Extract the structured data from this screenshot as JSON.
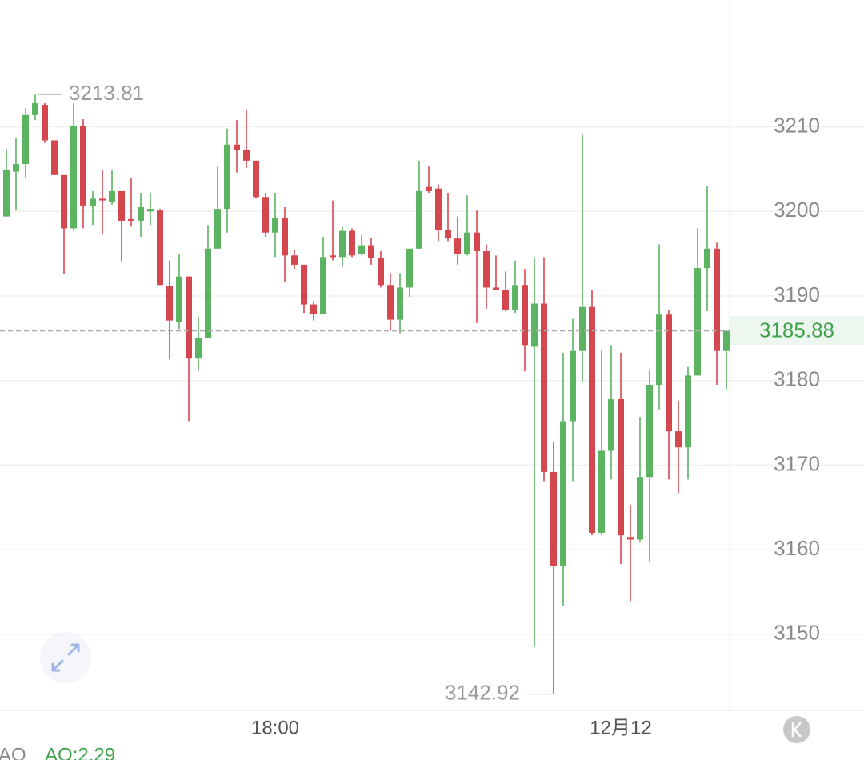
{
  "chart_data": {
    "type": "candlestick",
    "categories": [
      null,
      null,
      null,
      null,
      null,
      null,
      null,
      null,
      null,
      null,
      null,
      null,
      null,
      null,
      null,
      null,
      null,
      null,
      null,
      null,
      null,
      null,
      null,
      null,
      null,
      null,
      null,
      null,
      "18:00",
      null,
      null,
      null,
      null,
      null,
      null,
      null,
      null,
      null,
      null,
      null,
      null,
      null,
      null,
      null,
      null,
      null,
      null,
      null,
      null,
      null,
      null,
      null,
      null,
      null,
      null,
      null,
      null,
      null,
      null,
      null,
      null,
      null,
      null,
      null,
      "12月12",
      null,
      null,
      null,
      null,
      null,
      null,
      null,
      null,
      null,
      null,
      null
    ],
    "open": [
      3199.4,
      3204.7,
      3205.6,
      3211.4,
      3212.6,
      3208.4,
      3204.3,
      3198.0,
      3210.1,
      3200.7,
      3201.5,
      3201.1,
      3202.4,
      3199.1,
      3198.9,
      3200.0,
      3200.1,
      3191.2,
      3186.9,
      3192.3,
      3182.6,
      3185.0,
      3195.6,
      3200.3,
      3207.9,
      3207.3,
      3206.0,
      3201.7,
      3197.5,
      3199.2,
      3194.8,
      3193.7,
      3189.0,
      3187.9,
      3194.8,
      3194.6,
      3197.7,
      3195.0,
      3196.0,
      3194.5,
      3191.3,
      3187.2,
      3191.0,
      3195.6,
      3202.9,
      3202.7,
      3197.8,
      3196.8,
      3195.0,
      3197.5,
      3195.3,
      3191.0,
      3190.7,
      3188.4,
      3191.3,
      3184.0,
      3189.1,
      3169.2,
      3158.1,
      3175.2,
      3183.5,
      3188.7,
      3162.0,
      3171.7,
      3177.8,
      3161.5,
      3161.2,
      3168.6,
      3179.5,
      3187.8,
      3174.0,
      3172.1,
      3180.6,
      3193.3,
      3195.6,
      3183.5
    ],
    "high": [
      3207.4,
      3208.7,
      3212.2,
      3213.81,
      3212.8,
      3208.4,
      3204.3,
      3212.8,
      3210.9,
      3202.4,
      3204.9,
      3204.9,
      3202.4,
      3203.9,
      3202.2,
      3202.2,
      3200.3,
      3194.2,
      3195.0,
      3192.3,
      3187.5,
      3198.4,
      3205.3,
      3209.8,
      3210.8,
      3212.0,
      3206.0,
      3202.2,
      3202.2,
      3200.5,
      3195.4,
      3193.7,
      3189.4,
      3197.0,
      3201.3,
      3198.2,
      3198.0,
      3197.2,
      3196.9,
      3195.3,
      3192.7,
      3192.7,
      3195.6,
      3206.0,
      3205.3,
      3203.2,
      3202.2,
      3199.4,
      3201.9,
      3200.1,
      3196.1,
      3194.8,
      3192.9,
      3194.2,
      3193.2,
      3194.5,
      3194.6,
      3172.8,
      3183.3,
      3187.3,
      3209.1,
      3190.7,
      3183.6,
      3184.2,
      3183.3,
      3165.3,
      3175.7,
      3181.2,
      3196.1,
      3188.3,
      3177.6,
      3181.6,
      3198.0,
      3203.0,
      3196.3,
      3185.88
    ],
    "low": [
      3199.4,
      3200.1,
      3203.9,
      3210.8,
      3208.1,
      3204.3,
      3192.6,
      3197.7,
      3198.0,
      3198.4,
      3197.3,
      3200.8,
      3194.1,
      3198.2,
      3197.0,
      3198.4,
      3191.3,
      3182.5,
      3186.1,
      3175.2,
      3181.1,
      3185.0,
      3195.6,
      3197.5,
      3204.6,
      3205.1,
      3201.5,
      3197.0,
      3194.6,
      3191.6,
      3193.2,
      3188.0,
      3187.1,
      3187.9,
      3194.2,
      3193.4,
      3194.6,
      3194.8,
      3193.7,
      3191.0,
      3185.9,
      3185.6,
      3189.9,
      3195.6,
      3202.2,
      3196.5,
      3196.5,
      3193.7,
      3194.8,
      3186.8,
      3188.5,
      3190.7,
      3188.2,
      3188.0,
      3181.1,
      3148.5,
      3168.1,
      3142.92,
      3153.3,
      3168.1,
      3179.9,
      3161.7,
      3161.7,
      3168.3,
      3158.3,
      3153.9,
      3160.9,
      3158.6,
      3176.6,
      3168.3,
      3166.7,
      3168.3,
      3180.6,
      3188.2,
      3179.5,
      3179.0
    ],
    "close": [
      3204.9,
      3205.6,
      3211.4,
      3212.8,
      3208.4,
      3204.3,
      3198.0,
      3210.1,
      3200.7,
      3201.5,
      3201.3,
      3202.4,
      3198.9,
      3198.9,
      3200.5,
      3200.3,
      3191.3,
      3187.1,
      3192.3,
      3182.6,
      3185.0,
      3195.6,
      3200.3,
      3207.9,
      3207.3,
      3206.0,
      3201.7,
      3197.5,
      3199.2,
      3194.8,
      3193.7,
      3189.0,
      3187.9,
      3194.6,
      3194.6,
      3197.7,
      3194.8,
      3196.0,
      3194.5,
      3191.3,
      3187.2,
      3191.0,
      3195.6,
      3202.4,
      3202.4,
      3197.8,
      3196.8,
      3195.0,
      3197.5,
      3195.3,
      3191.0,
      3190.7,
      3188.4,
      3191.3,
      3184.2,
      3189.1,
      3169.2,
      3158.1,
      3175.2,
      3183.5,
      3188.7,
      3162.0,
      3171.7,
      3177.8,
      3161.7,
      3161.2,
      3168.6,
      3179.5,
      3187.8,
      3174.0,
      3172.1,
      3180.6,
      3193.3,
      3195.6,
      3183.5,
      3185.88
    ],
    "up_color": "#5cb362",
    "down_color": "#d5474f",
    "ylim": [
      3141,
      3225
    ],
    "yticks": [
      3150,
      3160,
      3170,
      3180,
      3190,
      3200,
      3210
    ],
    "grid": true,
    "last_price_line": true,
    "indicator": {
      "name": "AO",
      "label": "AO:2.29"
    }
  }
}
